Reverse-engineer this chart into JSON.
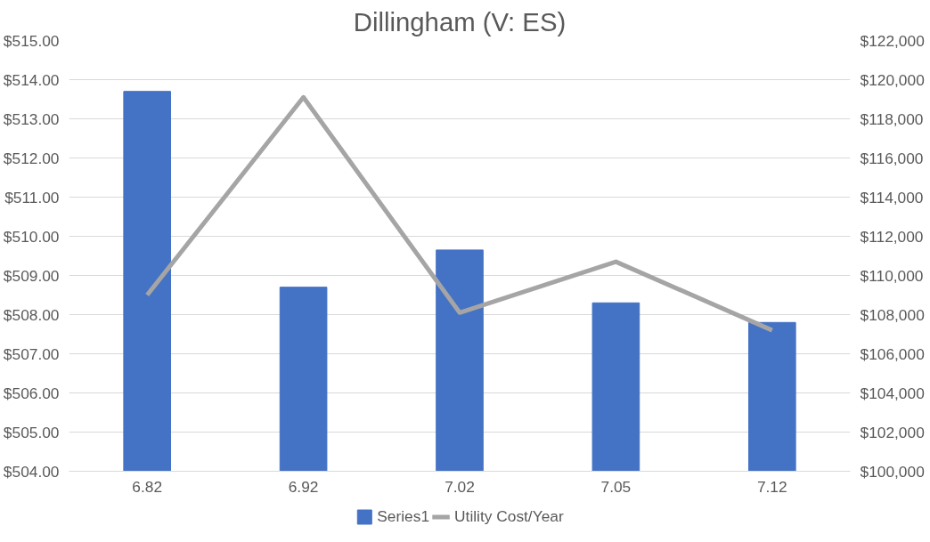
{
  "chart_data": {
    "type": "bar",
    "title": "Dillingham (V: ES)",
    "categories": [
      "6.82",
      "6.92",
      "7.02",
      "7.05",
      "7.12"
    ],
    "series": [
      {
        "name": "Series1",
        "color": "#4472c4",
        "values": [
          513.7,
          508.7,
          509.65,
          508.3,
          507.8
        ]
      },
      {
        "name": "Utility Cost/Year",
        "type": "line",
        "axis": "y2",
        "color": "#a5a5a5",
        "values": [
          109000,
          119100,
          108100,
          110700,
          107200
        ]
      }
    ],
    "ylim": [
      504,
      515
    ],
    "yticks": [
      {
        "value": 504,
        "label": "$504.00"
      },
      {
        "value": 505,
        "label": "$505.00"
      },
      {
        "value": 506,
        "label": "$506.00"
      },
      {
        "value": 507,
        "label": "$507.00"
      },
      {
        "value": 508,
        "label": "$508.00"
      },
      {
        "value": 509,
        "label": "$509.00"
      },
      {
        "value": 510,
        "label": "$510.00"
      },
      {
        "value": 511,
        "label": "$511.00"
      },
      {
        "value": 512,
        "label": "$512.00"
      },
      {
        "value": 513,
        "label": "$513.00"
      },
      {
        "value": 514,
        "label": "$514.00"
      },
      {
        "value": 515,
        "label": "$515.00"
      }
    ],
    "y2lim": [
      100000,
      122000
    ],
    "y2ticks": [
      {
        "value": 100000,
        "label": "$100,000"
      },
      {
        "value": 102000,
        "label": "$102,000"
      },
      {
        "value": 104000,
        "label": "$104,000"
      },
      {
        "value": 106000,
        "label": "$106,000"
      },
      {
        "value": 108000,
        "label": "$108,000"
      },
      {
        "value": 110000,
        "label": "$110,000"
      },
      {
        "value": 112000,
        "label": "$112,000"
      },
      {
        "value": 114000,
        "label": "$114,000"
      },
      {
        "value": 116000,
        "label": "$116,000"
      },
      {
        "value": 118000,
        "label": "$118,000"
      },
      {
        "value": 120000,
        "label": "$120,000"
      },
      {
        "value": 122000,
        "label": "$122,000"
      }
    ],
    "grid": "y",
    "legend": "bottom"
  }
}
